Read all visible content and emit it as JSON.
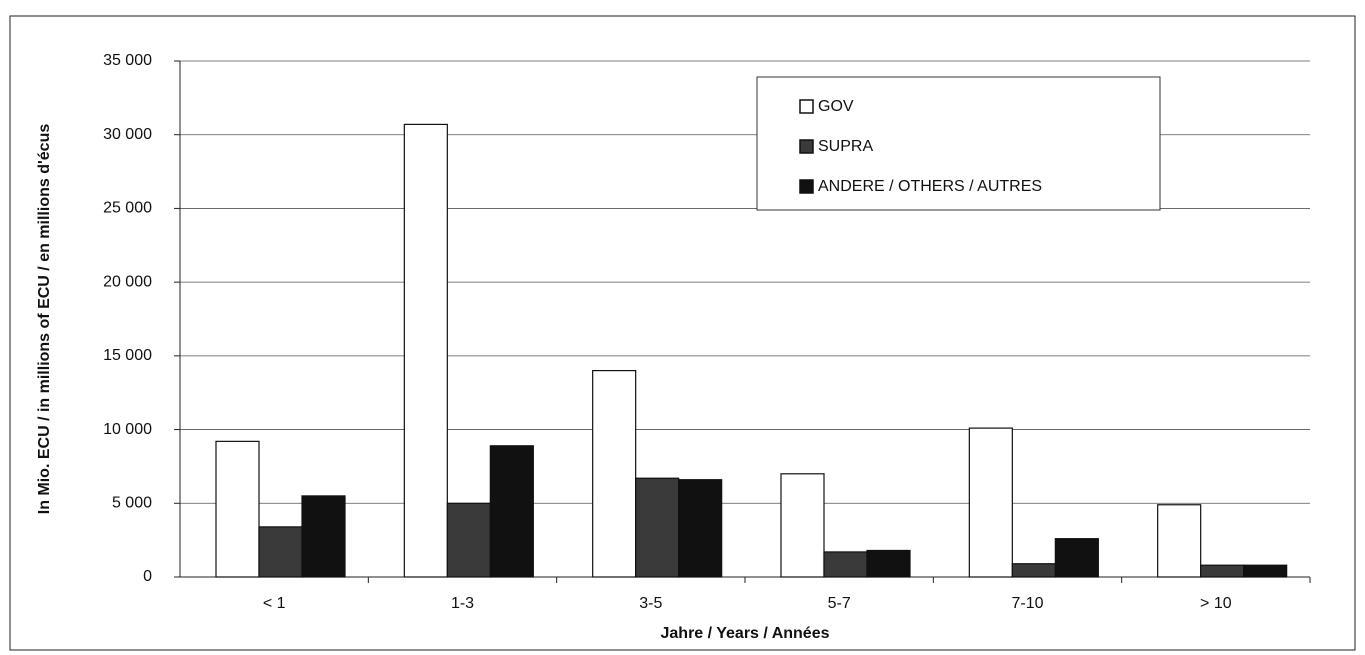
{
  "chart_data": {
    "type": "bar",
    "ylabel": "In Mio. ECU / in millions of ECU / en millions d'écus",
    "xlabel": "Jahre / Years / Années",
    "categories": [
      "< 1",
      "1-3",
      "3-5",
      "5-7",
      "7-10",
      "> 10"
    ],
    "series": [
      {
        "name": "GOV",
        "color": "#ffffff",
        "values": [
          9200,
          30700,
          14000,
          7000,
          10100,
          4900
        ]
      },
      {
        "name": "SUPRA",
        "color": "#3a3a3a",
        "values": [
          3400,
          5000,
          6700,
          1700,
          900,
          800
        ]
      },
      {
        "name": "ANDERE / OTHERS / AUTRES",
        "color": "#111111",
        "values": [
          5500,
          8900,
          6600,
          1800,
          2600,
          800
        ]
      }
    ],
    "ylim": [
      0,
      35000
    ],
    "yticks": [
      0,
      {
        "value": 5000,
        "label": "5 000"
      },
      {
        "value": 10000,
        "label": "10 000"
      },
      {
        "value": 15000,
        "label": "15 000"
      },
      {
        "value": 20000,
        "label": "20 000"
      },
      {
        "value": 25000,
        "label": "25 000"
      },
      {
        "value": 30000,
        "label": "30 000"
      },
      {
        "value": 35000,
        "label": "35 000"
      }
    ],
    "grid": true,
    "legend": "top-right"
  }
}
